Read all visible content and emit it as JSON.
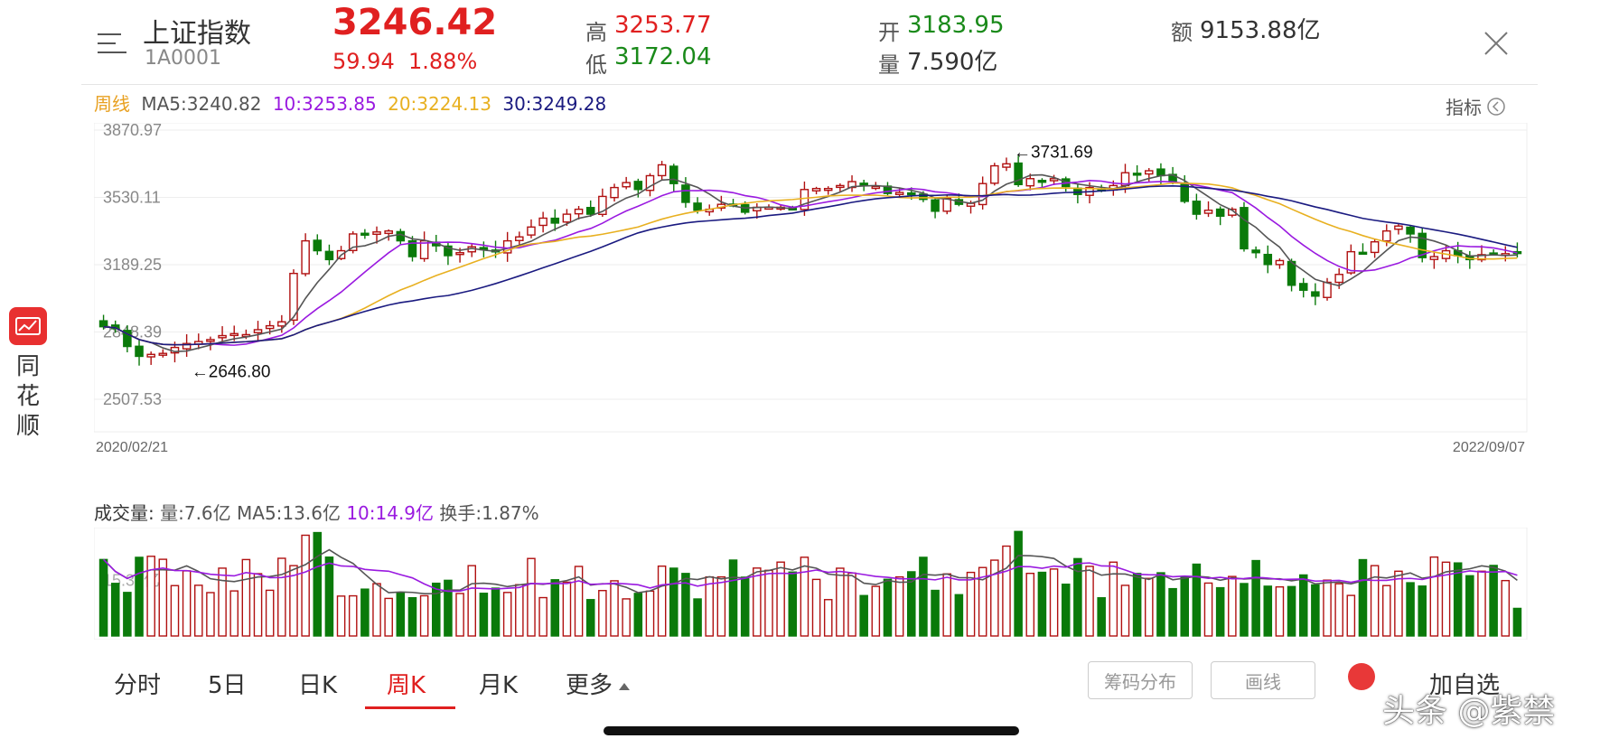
{
  "header": {
    "title": "上证指数",
    "code": "1A0001",
    "price": "3246.42",
    "change": "59.94",
    "change_pct": "1.88%",
    "high_label": "高",
    "high_value": "3253.77",
    "low_label": "低",
    "low_value": "3172.04",
    "open_label": "开",
    "open_value": "3183.95",
    "volume_label": "量",
    "volume_value": "7.590亿",
    "amount_label": "额",
    "amount_value": "9153.88亿"
  },
  "ma_bar": {
    "period": "周线",
    "ma5": "MA5:3240.82",
    "ma10": "10:3253.85",
    "ma20": "20:3224.13",
    "ma30": "30:3249.28",
    "indicator_label": "指标"
  },
  "side": {
    "app_name_1": "同",
    "app_name_2": "花",
    "app_name_3": "顺"
  },
  "colors": {
    "up": "#e02020",
    "down": "#0a7a0a",
    "ma5": "#555555",
    "ma10": "#9a1ae0",
    "ma20": "#e8b020",
    "ma30": "#1a1a80",
    "candle_up_outline": "#b01010"
  },
  "chart_data": [
    {
      "type": "candlestick",
      "title": "",
      "y_ticks": [
        "3870.97",
        "3530.11",
        "3189.25",
        "2848.39",
        "2507.53"
      ],
      "ylim": [
        2507.53,
        3870.97
      ],
      "x_start": "2020/02/21",
      "x_end": "2022/09/07",
      "annotations": [
        "←3731.69",
        "←2646.80"
      ],
      "high_point": 3731.69,
      "low_point": 2646.8,
      "series": [
        {
          "name": "MA5",
          "value": 3240.82
        },
        {
          "name": "MA10",
          "value": 3253.85
        },
        {
          "name": "MA20",
          "value": 3224.13
        },
        {
          "name": "MA30",
          "value": 3249.28
        }
      ],
      "close": [
        2875,
        2865,
        2775,
        2725,
        2735,
        2740,
        2770,
        2790,
        2800,
        2810,
        2830,
        2840,
        2835,
        2860,
        2880,
        2900,
        3145,
        3310,
        3260,
        3215,
        3260,
        3345,
        3345,
        3355,
        3360,
        3310,
        3230,
        3310,
        3285,
        3235,
        3250,
        3280,
        3265,
        3255,
        3310,
        3330,
        3380,
        3425,
        3400,
        3445,
        3470,
        3445,
        3535,
        3580,
        3605,
        3570,
        3640,
        3695,
        3600,
        3505,
        3465,
        3470,
        3495,
        3495,
        3455,
        3480,
        3480,
        3480,
        3475,
        3570,
        3575,
        3575,
        3590,
        3610,
        3590,
        3585,
        3550,
        3555,
        3550,
        3520,
        3460,
        3525,
        3495,
        3500,
        3600,
        3690,
        3700,
        3595,
        3625,
        3610,
        3625,
        3585,
        3545,
        3580,
        3570,
        3590,
        3655,
        3650,
        3665,
        3640,
        3610,
        3510,
        3445,
        3465,
        3435,
        3470,
        3270,
        3250,
        3190,
        3210,
        3085,
        3060,
        3030,
        3100,
        3140,
        3255,
        3250,
        3305,
        3360,
        3385,
        3345,
        3225,
        3230,
        3260,
        3235,
        3215,
        3240,
        3245,
        3245,
        3246.42
      ],
      "volume_unit": "亿",
      "volume_last": 7.6,
      "volume_ma5": 13.6,
      "volume_ma10": 14.9,
      "turnover": "1.87%"
    }
  ],
  "volume_bar": {
    "title": "成交量:",
    "vol": "量:7.6亿",
    "ma5": "MA5:13.6亿",
    "ma10": "10:14.9亿",
    "turnover": "换手:1.87%",
    "axis_label": "15.32亿"
  },
  "tabs": [
    {
      "label": "分时"
    },
    {
      "label": "5日"
    },
    {
      "label": "日K"
    },
    {
      "label": "周K"
    },
    {
      "label": "月K"
    },
    {
      "label": "更多"
    }
  ],
  "buttons": {
    "chips": "筹码分布",
    "draw": "画线",
    "add_fav": "加自选"
  },
  "watermark": "头条 @紫禁"
}
